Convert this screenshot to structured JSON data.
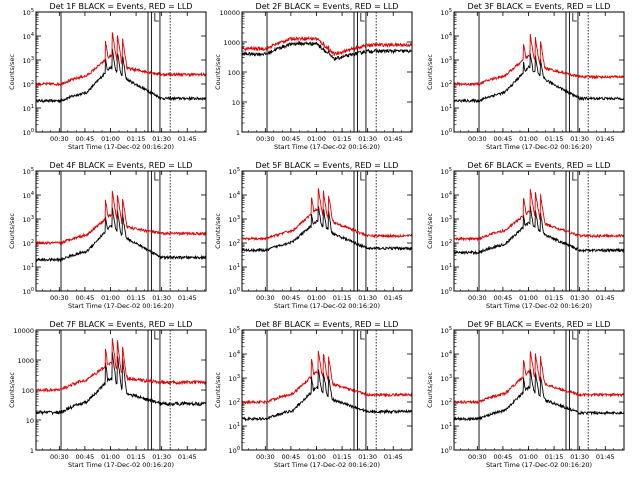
{
  "figure": {
    "time_ticks": [
      "00:30",
      "00:45",
      "01:00",
      "01:15",
      "01:30",
      "01:45"
    ],
    "xlabel": "Start Time (17-Dec-02 00:16:20)",
    "ylabel": "Counts/sec",
    "colors": {
      "events": "#000000",
      "lld": "#e00000",
      "axes": "#000000"
    }
  },
  "chart_data": [
    {
      "type": "line",
      "title": "Det 1F BLACK = Events, RED = LLD",
      "yscale": "log",
      "ylim": [
        1,
        100000
      ],
      "ytick_labels": [
        "10^0",
        "10^1",
        "10^2",
        "10^3",
        "10^4",
        "10^5"
      ],
      "ytick_style": "exp",
      "xlim": [
        "00:16:20",
        "01:56"
      ],
      "markers": [
        "00:31",
        "01:22",
        "01:24",
        "01:29"
      ],
      "series": [
        {
          "name": "Events",
          "color": "#000000",
          "base": 20,
          "bump": 500,
          "flare": 3000,
          "tail": 25
        },
        {
          "name": "LLD",
          "color": "#e00000",
          "base": 100,
          "bump": 1500,
          "flare": 15000,
          "tail": 250
        }
      ]
    },
    {
      "type": "line",
      "title": "Det 2F BLACK = Events, RED = LLD",
      "yscale": "log",
      "ylim": [
        1,
        10000
      ],
      "ytick_labels": [
        "1",
        "10",
        "100",
        "1000",
        "10000"
      ],
      "ytick_style": "dec",
      "xlim": [
        "00:16:20",
        "01:56"
      ],
      "markers": [
        "00:31",
        "01:22",
        "01:24",
        "01:29"
      ],
      "series": [
        {
          "name": "Events",
          "color": "#000000",
          "base": 400,
          "bump": 900,
          "flare": 1000,
          "tail": 500
        },
        {
          "name": "LLD",
          "color": "#e00000",
          "base": 600,
          "bump": 1300,
          "flare": 1400,
          "tail": 800
        }
      ]
    },
    {
      "type": "line",
      "title": "Det 3F BLACK = Events, RED = LLD",
      "yscale": "log",
      "ylim": [
        1,
        100000
      ],
      "ytick_labels": [
        "10^0",
        "10^1",
        "10^2",
        "10^3",
        "10^4",
        "10^5"
      ],
      "ytick_style": "exp",
      "xlim": [
        "00:16:20",
        "01:56"
      ],
      "markers": [
        "00:31",
        "01:22",
        "01:24",
        "01:29"
      ],
      "series": [
        {
          "name": "Events",
          "color": "#000000",
          "base": 20,
          "bump": 500,
          "flare": 2000,
          "tail": 25
        },
        {
          "name": "LLD",
          "color": "#e00000",
          "base": 100,
          "bump": 1500,
          "flare": 12000,
          "tail": 200
        }
      ]
    },
    {
      "type": "line",
      "title": "Det 4F BLACK = Events, RED = LLD",
      "yscale": "log",
      "ylim": [
        1,
        100000
      ],
      "ytick_labels": [
        "10^0",
        "10^1",
        "10^2",
        "10^3",
        "10^4",
        "10^5"
      ],
      "ytick_style": "exp",
      "xlim": [
        "00:16:20",
        "01:56"
      ],
      "markers": [
        "00:31",
        "01:22",
        "01:24",
        "01:29"
      ],
      "series": [
        {
          "name": "Events",
          "color": "#000000",
          "base": 20,
          "bump": 500,
          "flare": 3000,
          "tail": 25
        },
        {
          "name": "LLD",
          "color": "#e00000",
          "base": 100,
          "bump": 1500,
          "flare": 15000,
          "tail": 250
        }
      ]
    },
    {
      "type": "line",
      "title": "Det 5F BLACK = Events, RED = LLD",
      "yscale": "log",
      "ylim": [
        1,
        100000
      ],
      "ytick_labels": [
        "10^0",
        "10^1",
        "10^2",
        "10^3",
        "10^4",
        "10^5"
      ],
      "ytick_style": "exp",
      "xlim": [
        "00:16:20",
        "01:56"
      ],
      "markers": [
        "00:31",
        "01:22",
        "01:24",
        "01:29"
      ],
      "series": [
        {
          "name": "Events",
          "color": "#000000",
          "base": 50,
          "bump": 800,
          "flare": 4000,
          "tail": 60
        },
        {
          "name": "LLD",
          "color": "#e00000",
          "base": 150,
          "bump": 2500,
          "flare": 20000,
          "tail": 200
        }
      ]
    },
    {
      "type": "line",
      "title": "Det 6F BLACK = Events, RED = LLD",
      "yscale": "log",
      "ylim": [
        1,
        100000
      ],
      "ytick_labels": [
        "10^0",
        "10^1",
        "10^2",
        "10^3",
        "10^4",
        "10^5"
      ],
      "ytick_style": "exp",
      "xlim": [
        "00:16:20",
        "01:56"
      ],
      "markers": [
        "00:31",
        "01:22",
        "01:24",
        "01:29"
      ],
      "series": [
        {
          "name": "Events",
          "color": "#000000",
          "base": 40,
          "bump": 700,
          "flare": 3500,
          "tail": 50
        },
        {
          "name": "LLD",
          "color": "#e00000",
          "base": 150,
          "bump": 2000,
          "flare": 20000,
          "tail": 200
        }
      ]
    },
    {
      "type": "line",
      "title": "Det 7F BLACK = Events, RED = LLD",
      "yscale": "log",
      "ylim": [
        1,
        10000
      ],
      "ytick_labels": [
        "1",
        "10",
        "100",
        "1000",
        "10000"
      ],
      "ytick_style": "dec",
      "xlim": [
        "00:16:20",
        "01:56"
      ],
      "markers": [
        "00:31",
        "01:22",
        "01:24",
        "01:29"
      ],
      "series": [
        {
          "name": "Events",
          "color": "#000000",
          "base": 18,
          "bump": 250,
          "flare": 2000,
          "tail": 35
        },
        {
          "name": "LLD",
          "color": "#e00000",
          "base": 100,
          "bump": 800,
          "flare": 6000,
          "tail": 180
        }
      ]
    },
    {
      "type": "line",
      "title": "Det 8F BLACK = Events, RED = LLD",
      "yscale": "log",
      "ylim": [
        1,
        100000
      ],
      "ytick_labels": [
        "10^0",
        "10^1",
        "10^2",
        "10^3",
        "10^4",
        "10^5"
      ],
      "ytick_style": "exp",
      "xlim": [
        "00:16:20",
        "01:56"
      ],
      "markers": [
        "00:31",
        "01:22",
        "01:24",
        "01:29"
      ],
      "series": [
        {
          "name": "Events",
          "color": "#000000",
          "base": 20,
          "bump": 400,
          "flare": 2500,
          "tail": 40
        },
        {
          "name": "LLD",
          "color": "#e00000",
          "base": 100,
          "bump": 1800,
          "flare": 15000,
          "tail": 200
        }
      ]
    },
    {
      "type": "line",
      "title": "Det 9F BLACK = Events, RED = LLD",
      "yscale": "log",
      "ylim": [
        1,
        100000
      ],
      "ytick_labels": [
        "10^0",
        "10^1",
        "10^2",
        "10^3",
        "10^4",
        "10^5"
      ],
      "ytick_style": "exp",
      "xlim": [
        "00:16:20",
        "01:56"
      ],
      "markers": [
        "00:31",
        "01:22",
        "01:24",
        "01:29"
      ],
      "series": [
        {
          "name": "Events",
          "color": "#000000",
          "base": 20,
          "bump": 400,
          "flare": 2500,
          "tail": 35
        },
        {
          "name": "LLD",
          "color": "#e00000",
          "base": 100,
          "bump": 1800,
          "flare": 15000,
          "tail": 200
        }
      ]
    }
  ]
}
